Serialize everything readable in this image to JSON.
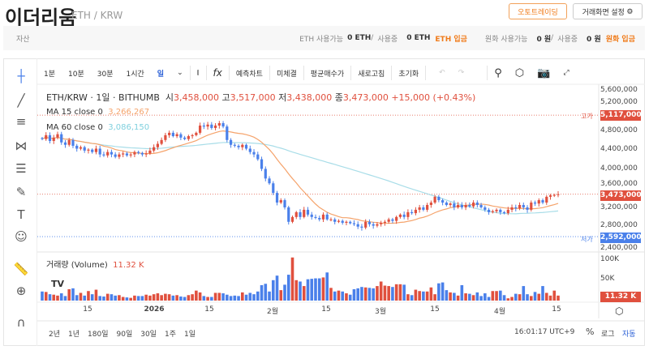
{
  "header": {
    "title": "이더리움",
    "pair": "ETH / KRW",
    "autotrade": "오토트레이딩",
    "settings": "거래화면 설정"
  },
  "assets": {
    "label": "자산",
    "eth_avail_label": "ETH 사용가능",
    "eth_avail": "0 ETH",
    "slash": "/",
    "eth_used_label": "사용중",
    "eth_used": "0 ETH",
    "eth_deposit": "ETH 입금",
    "krw_avail_label": "원화 사용가능",
    "krw_avail": "0 원",
    "krw_used_label": "사용중",
    "krw_used": "0 원",
    "krw_deposit": "원화 입금"
  },
  "toolbar": {
    "intervals": [
      "1분",
      "10분",
      "30분",
      "1시간",
      "일"
    ],
    "predict": "예측차트",
    "unfilled": "미체결",
    "avg": "평균매수가",
    "refresh": "새로고침",
    "reset": "초기화"
  },
  "legend": {
    "symbol": "ETH/KRW · 1일 · BITHUMB",
    "o_label": "시",
    "o": "3,458,000",
    "h_label": "고",
    "h": "3,517,000",
    "l_label": "저",
    "l": "3,438,000",
    "c_label": "종",
    "c": "3,473,000",
    "chg": "+15,000 (+0.43%)",
    "ma15_label": "MA 15 close 0",
    "ma15": "3,266,267",
    "ma60_label": "MA 60 close 0",
    "ma60": "3,086,150",
    "vol_label": "거래량 (Volume)",
    "vol": "11.32 K"
  },
  "price_axis": [
    "5,600,000",
    "5,200,000",
    "4,800,000",
    "4,400,000",
    "4,000,000",
    "3,600,000",
    "3,200,000",
    "2,800,000",
    "2,400,000"
  ],
  "tags": {
    "high_label": "고가",
    "high": "5,117,000",
    "last": "3,473,000",
    "low_label": "저가",
    "low": "2,592,000",
    "vol": "11.32 K"
  },
  "vol_axis": [
    "100K",
    "50K"
  ],
  "time_axis": [
    "15",
    "2026",
    "15",
    "2월",
    "15",
    "3월",
    "15",
    "4월",
    "15"
  ],
  "ranges": [
    "2년",
    "1년",
    "180일",
    "90일",
    "30일",
    "1주",
    "1일"
  ],
  "clock": "16:01:17 UTC+9",
  "pct": "%",
  "log": "로그",
  "auto": "자동",
  "colors": {
    "up": "#e0503e",
    "down": "#4a80ea",
    "ma15": "#f5a36b",
    "ma60": "#a8dde8"
  },
  "chart_data": {
    "type": "candlestick",
    "unit": "KRW (thousands)",
    "closes": [
      4620,
      4700,
      4580,
      4650,
      4720,
      4550,
      4500,
      4600,
      4480,
      4420,
      4450,
      4380,
      4400,
      4350,
      4420,
      4300,
      4280,
      4350,
      4300,
      4250,
      4300,
      4320,
      4280,
      4300,
      4350,
      4330,
      4300,
      4320,
      4380,
      4450,
      4520,
      4600,
      4700,
      4750,
      4680,
      4720,
      4650,
      4620,
      4680,
      4700,
      4750,
      4900,
      4880,
      4920,
      4850,
      4900,
      4950,
      4880,
      4600,
      4500,
      4480,
      4450,
      4500,
      4420,
      4350,
      4300,
      4200,
      4000,
      3800,
      3700,
      3500,
      3300,
      3350,
      3200,
      2900,
      3000,
      3100,
      3000,
      3150,
      3050,
      3000,
      2980,
      2950,
      3050,
      2950,
      2950,
      2900,
      2920,
      2880,
      2900,
      2870,
      2850,
      2800,
      2780,
      2900,
      2850,
      2820,
      2850,
      2880,
      2900,
      2950,
      2920,
      3000,
      3050,
      3000,
      3100,
      3080,
      3150,
      3200,
      3150,
      3250,
      3300,
      3420,
      3350,
      3300,
      3250,
      3280,
      3200,
      3250,
      3200,
      3250,
      3220,
      3300,
      3250,
      3200,
      3150,
      3100,
      3120,
      3150,
      3100,
      3080,
      3150,
      3200,
      3180,
      3250,
      3200,
      3150,
      3300,
      3280,
      3350,
      3300,
      3420,
      3450,
      3458,
      3473
    ],
    "volumes_k": [
      20,
      19,
      14,
      13,
      11,
      16,
      10,
      25,
      27,
      12,
      17,
      11,
      21,
      14,
      24,
      10,
      9,
      15,
      14,
      11,
      12,
      8,
      7,
      6,
      11,
      10,
      10,
      13,
      11,
      14,
      16,
      12,
      15,
      14,
      11,
      12,
      9,
      8,
      12,
      14,
      22,
      18,
      10,
      8,
      8,
      17,
      17,
      16,
      13,
      10,
      11,
      10,
      18,
      13,
      17,
      14,
      20,
      34,
      37,
      20,
      45,
      55,
      23,
      35,
      57,
      95,
      45,
      42,
      32,
      47,
      48,
      49,
      49,
      51,
      62,
      28,
      20,
      22,
      20,
      16,
      13,
      25,
      27,
      30,
      29,
      28,
      27,
      32,
      42,
      33,
      32,
      30,
      36,
      36,
      35,
      14,
      12,
      24,
      21,
      20,
      20,
      29,
      14,
      38,
      40,
      23,
      18,
      17,
      11,
      34,
      16,
      15,
      12,
      18,
      10,
      16,
      8,
      21,
      21,
      22,
      12,
      5,
      8,
      15,
      14,
      32,
      14,
      10,
      19,
      15,
      32,
      17,
      11,
      22,
      11
    ]
  }
}
